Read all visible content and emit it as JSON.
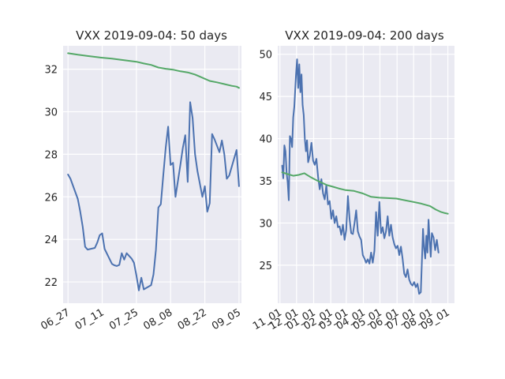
{
  "chart_data": [
    {
      "type": "line",
      "title": "VXX 2019-09-04: 50 days",
      "grid": true,
      "xlim": [
        "2019-06-25",
        "2019-09-06"
      ],
      "ylim": [
        21.0,
        33.1
      ],
      "x_ticks": [
        {
          "date": "2019-06-27",
          "label": "06_27"
        },
        {
          "date": "2019-07-11",
          "label": "07_11"
        },
        {
          "date": "2019-07-25",
          "label": "07_25"
        },
        {
          "date": "2019-08-08",
          "label": "08_08"
        },
        {
          "date": "2019-08-22",
          "label": "08_22"
        },
        {
          "date": "2019-09-05",
          "label": "09_05"
        }
      ],
      "y_ticks": [
        22,
        24,
        26,
        28,
        30,
        32
      ],
      "series": [
        {
          "color": "#4c72b0",
          "points": [
            [
              "2019-06-27",
              27.05
            ],
            [
              "2019-06-28",
              26.85
            ],
            [
              "2019-07-01",
              25.9
            ],
            [
              "2019-07-02",
              25.3
            ],
            [
              "2019-07-03",
              24.6
            ],
            [
              "2019-07-04",
              23.65
            ],
            [
              "2019-07-05",
              23.52
            ],
            [
              "2019-07-08",
              23.6
            ],
            [
              "2019-07-09",
              23.85
            ],
            [
              "2019-07-10",
              24.2
            ],
            [
              "2019-07-11",
              24.28
            ],
            [
              "2019-07-12",
              23.55
            ],
            [
              "2019-07-15",
              22.85
            ],
            [
              "2019-07-16",
              22.78
            ],
            [
              "2019-07-17",
              22.75
            ],
            [
              "2019-07-18",
              22.8
            ],
            [
              "2019-07-19",
              23.35
            ],
            [
              "2019-07-20",
              23.05
            ],
            [
              "2019-07-21",
              23.35
            ],
            [
              "2019-07-23",
              23.1
            ],
            [
              "2019-07-24",
              22.9
            ],
            [
              "2019-07-25",
              22.3
            ],
            [
              "2019-07-26",
              21.6
            ],
            [
              "2019-07-27",
              22.2
            ],
            [
              "2019-07-28",
              21.65
            ],
            [
              "2019-07-31",
              21.85
            ],
            [
              "2019-08-01",
              22.35
            ],
            [
              "2019-08-02",
              23.5
            ],
            [
              "2019-08-03",
              25.5
            ],
            [
              "2019-08-04",
              25.65
            ],
            [
              "2019-08-05",
              27.0
            ],
            [
              "2019-08-06",
              28.3
            ],
            [
              "2019-08-07",
              29.3
            ],
            [
              "2019-08-08",
              27.5
            ],
            [
              "2019-08-09",
              27.6
            ],
            [
              "2019-08-10",
              26.0
            ],
            [
              "2019-08-12",
              27.5
            ],
            [
              "2019-08-13",
              28.3
            ],
            [
              "2019-08-14",
              28.9
            ],
            [
              "2019-08-15",
              26.7
            ],
            [
              "2019-08-16",
              30.45
            ],
            [
              "2019-08-17",
              29.7
            ],
            [
              "2019-08-18",
              28.0
            ],
            [
              "2019-08-19",
              27.2
            ],
            [
              "2019-08-21",
              26.0
            ],
            [
              "2019-08-22",
              26.5
            ],
            [
              "2019-08-23",
              25.3
            ],
            [
              "2019-08-24",
              25.7
            ],
            [
              "2019-08-25",
              28.95
            ],
            [
              "2019-08-26",
              28.7
            ],
            [
              "2019-08-28",
              28.1
            ],
            [
              "2019-08-29",
              28.65
            ],
            [
              "2019-08-30",
              28.0
            ],
            [
              "2019-08-31",
              26.85
            ],
            [
              "2019-09-01",
              27.0
            ],
            [
              "2019-09-04",
              28.2
            ],
            [
              "2019-09-05",
              26.5
            ]
          ]
        },
        {
          "color": "#55a868",
          "points": [
            [
              "2019-06-27",
              32.75
            ],
            [
              "2019-07-01",
              32.68
            ],
            [
              "2019-07-05",
              32.62
            ],
            [
              "2019-07-10",
              32.55
            ],
            [
              "2019-07-15",
              32.5
            ],
            [
              "2019-07-20",
              32.42
            ],
            [
              "2019-07-25",
              32.35
            ],
            [
              "2019-07-28",
              32.27
            ],
            [
              "2019-07-31",
              32.2
            ],
            [
              "2019-08-03",
              32.08
            ],
            [
              "2019-08-06",
              32.02
            ],
            [
              "2019-08-09",
              31.98
            ],
            [
              "2019-08-12",
              31.9
            ],
            [
              "2019-08-15",
              31.85
            ],
            [
              "2019-08-18",
              31.75
            ],
            [
              "2019-08-21",
              31.6
            ],
            [
              "2019-08-24",
              31.45
            ],
            [
              "2019-08-27",
              31.38
            ],
            [
              "2019-08-30",
              31.3
            ],
            [
              "2019-09-02",
              31.22
            ],
            [
              "2019-09-04",
              31.18
            ],
            [
              "2019-09-05",
              31.12
            ]
          ]
        }
      ]
    },
    {
      "type": "line",
      "title": "VXX 2019-09-04: 200 days",
      "grid": true,
      "xlim": [
        "2018-10-28",
        "2019-09-13"
      ],
      "ylim": [
        20.5,
        51.0
      ],
      "x_ticks": [
        {
          "date": "2018-11-01",
          "label": "11_01"
        },
        {
          "date": "2018-12-01",
          "label": "12_01"
        },
        {
          "date": "2019-01-01",
          "label": "01_01"
        },
        {
          "date": "2019-02-01",
          "label": "02_01"
        },
        {
          "date": "2019-03-01",
          "label": "03_01"
        },
        {
          "date": "2019-04-01",
          "label": "04_01"
        },
        {
          "date": "2019-05-01",
          "label": "05_01"
        },
        {
          "date": "2019-06-01",
          "label": "06_01"
        },
        {
          "date": "2019-07-01",
          "label": "07_01"
        },
        {
          "date": "2019-08-01",
          "label": "08_01"
        },
        {
          "date": "2019-09-01",
          "label": "09_01"
        }
      ],
      "y_ticks": [
        25,
        30,
        35,
        40,
        45,
        50
      ],
      "series": [
        {
          "color": "#4c72b0",
          "points": [
            [
              "2018-11-05",
              36.8
            ],
            [
              "2018-11-07",
              35.3
            ],
            [
              "2018-11-09",
              39.2
            ],
            [
              "2018-11-11",
              38.5
            ],
            [
              "2018-11-13",
              36.0
            ],
            [
              "2018-11-15",
              34.8
            ],
            [
              "2018-11-17",
              32.7
            ],
            [
              "2018-11-19",
              40.3
            ],
            [
              "2018-11-21",
              40.0
            ],
            [
              "2018-11-23",
              39.0
            ],
            [
              "2018-11-25",
              42.5
            ],
            [
              "2018-11-27",
              43.8
            ],
            [
              "2018-11-30",
              47.5
            ],
            [
              "2018-12-02",
              49.4
            ],
            [
              "2018-12-04",
              46.0
            ],
            [
              "2018-12-06",
              48.8
            ],
            [
              "2018-12-08",
              45.5
            ],
            [
              "2018-12-10",
              47.6
            ],
            [
              "2018-12-12",
              44.0
            ],
            [
              "2018-12-14",
              42.8
            ],
            [
              "2018-12-16",
              40.0
            ],
            [
              "2018-12-18",
              38.5
            ],
            [
              "2018-12-20",
              39.8
            ],
            [
              "2018-12-22",
              37.2
            ],
            [
              "2018-12-25",
              38.0
            ],
            [
              "2018-12-28",
              39.5
            ],
            [
              "2018-12-31",
              37.4
            ],
            [
              "2019-01-03",
              36.9
            ],
            [
              "2019-01-06",
              37.6
            ],
            [
              "2019-01-09",
              35.5
            ],
            [
              "2019-01-12",
              34.0
            ],
            [
              "2019-01-15",
              35.2
            ],
            [
              "2019-01-18",
              33.5
            ],
            [
              "2019-01-21",
              32.8
            ],
            [
              "2019-01-24",
              34.5
            ],
            [
              "2019-01-27",
              32.2
            ],
            [
              "2019-01-30",
              32.6
            ],
            [
              "2019-02-02",
              30.5
            ],
            [
              "2019-02-05",
              31.5
            ],
            [
              "2019-02-08",
              30.0
            ],
            [
              "2019-02-11",
              30.8
            ],
            [
              "2019-02-14",
              29.5
            ],
            [
              "2019-02-17",
              29.6
            ],
            [
              "2019-02-20",
              28.6
            ],
            [
              "2019-02-23",
              29.8
            ],
            [
              "2019-02-26",
              28.0
            ],
            [
              "2019-03-01",
              29.2
            ],
            [
              "2019-03-04",
              33.2
            ],
            [
              "2019-03-07",
              30.5
            ],
            [
              "2019-03-10",
              28.8
            ],
            [
              "2019-03-13",
              28.7
            ],
            [
              "2019-03-16",
              30.0
            ],
            [
              "2019-03-19",
              31.5
            ],
            [
              "2019-03-22",
              29.0
            ],
            [
              "2019-03-25",
              28.4
            ],
            [
              "2019-03-28",
              28.0
            ],
            [
              "2019-03-31",
              26.2
            ],
            [
              "2019-04-03",
              25.8
            ],
            [
              "2019-04-06",
              25.3
            ],
            [
              "2019-04-09",
              25.7
            ],
            [
              "2019-04-12",
              25.2
            ],
            [
              "2019-04-15",
              26.5
            ],
            [
              "2019-04-18",
              25.3
            ],
            [
              "2019-04-21",
              26.7
            ],
            [
              "2019-04-24",
              31.3
            ],
            [
              "2019-04-27",
              28.5
            ],
            [
              "2019-04-30",
              32.5
            ],
            [
              "2019-05-03",
              28.8
            ],
            [
              "2019-05-06",
              29.5
            ],
            [
              "2019-05-09",
              28.2
            ],
            [
              "2019-05-12",
              29.0
            ],
            [
              "2019-05-15",
              30.8
            ],
            [
              "2019-05-18",
              28.5
            ],
            [
              "2019-05-21",
              29.8
            ],
            [
              "2019-05-24",
              28.3
            ],
            [
              "2019-05-27",
              27.5
            ],
            [
              "2019-05-30",
              27.0
            ],
            [
              "2019-06-02",
              27.3
            ],
            [
              "2019-06-05",
              26.2
            ],
            [
              "2019-06-08",
              27.2
            ],
            [
              "2019-06-11",
              25.8
            ],
            [
              "2019-06-14",
              24.0
            ],
            [
              "2019-06-17",
              23.6
            ],
            [
              "2019-06-20",
              24.5
            ],
            [
              "2019-06-23",
              23.3
            ],
            [
              "2019-06-26",
              22.8
            ],
            [
              "2019-06-29",
              22.6
            ],
            [
              "2019-07-02",
              23.0
            ],
            [
              "2019-07-05",
              22.4
            ],
            [
              "2019-07-08",
              22.8
            ],
            [
              "2019-07-11",
              21.6
            ],
            [
              "2019-07-14",
              21.8
            ],
            [
              "2019-07-16",
              25.5
            ],
            [
              "2019-07-18",
              29.3
            ],
            [
              "2019-07-20",
              27.0
            ],
            [
              "2019-07-22",
              25.8
            ],
            [
              "2019-07-24",
              28.5
            ],
            [
              "2019-07-26",
              26.5
            ],
            [
              "2019-07-28",
              30.4
            ],
            [
              "2019-07-30",
              28.0
            ],
            [
              "2019-08-01",
              26.0
            ],
            [
              "2019-08-03",
              28.8
            ],
            [
              "2019-08-06",
              28.3
            ],
            [
              "2019-08-09",
              26.8
            ],
            [
              "2019-08-12",
              28.0
            ],
            [
              "2019-08-15",
              26.5
            ]
          ]
        },
        {
          "color": "#55a868",
          "points": [
            [
              "2018-11-05",
              36.0
            ],
            [
              "2018-11-15",
              35.8
            ],
            [
              "2018-11-25",
              35.6
            ],
            [
              "2018-12-05",
              35.7
            ],
            [
              "2018-12-15",
              35.9
            ],
            [
              "2018-12-25",
              35.5
            ],
            [
              "2019-01-05",
              35.1
            ],
            [
              "2019-01-15",
              34.8
            ],
            [
              "2019-01-25",
              34.5
            ],
            [
              "2019-02-05",
              34.3
            ],
            [
              "2019-02-15",
              34.1
            ],
            [
              "2019-02-28",
              33.9
            ],
            [
              "2019-03-15",
              33.8
            ],
            [
              "2019-03-31",
              33.5
            ],
            [
              "2019-04-15",
              33.1
            ],
            [
              "2019-04-30",
              33.0
            ],
            [
              "2019-05-15",
              32.95
            ],
            [
              "2019-05-31",
              32.9
            ],
            [
              "2019-06-15",
              32.7
            ],
            [
              "2019-06-30",
              32.5
            ],
            [
              "2019-07-15",
              32.3
            ],
            [
              "2019-07-31",
              32.0
            ],
            [
              "2019-08-10",
              31.6
            ],
            [
              "2019-08-20",
              31.3
            ],
            [
              "2019-08-25",
              31.2
            ],
            [
              "2019-09-01",
              31.1
            ]
          ]
        }
      ]
    }
  ]
}
